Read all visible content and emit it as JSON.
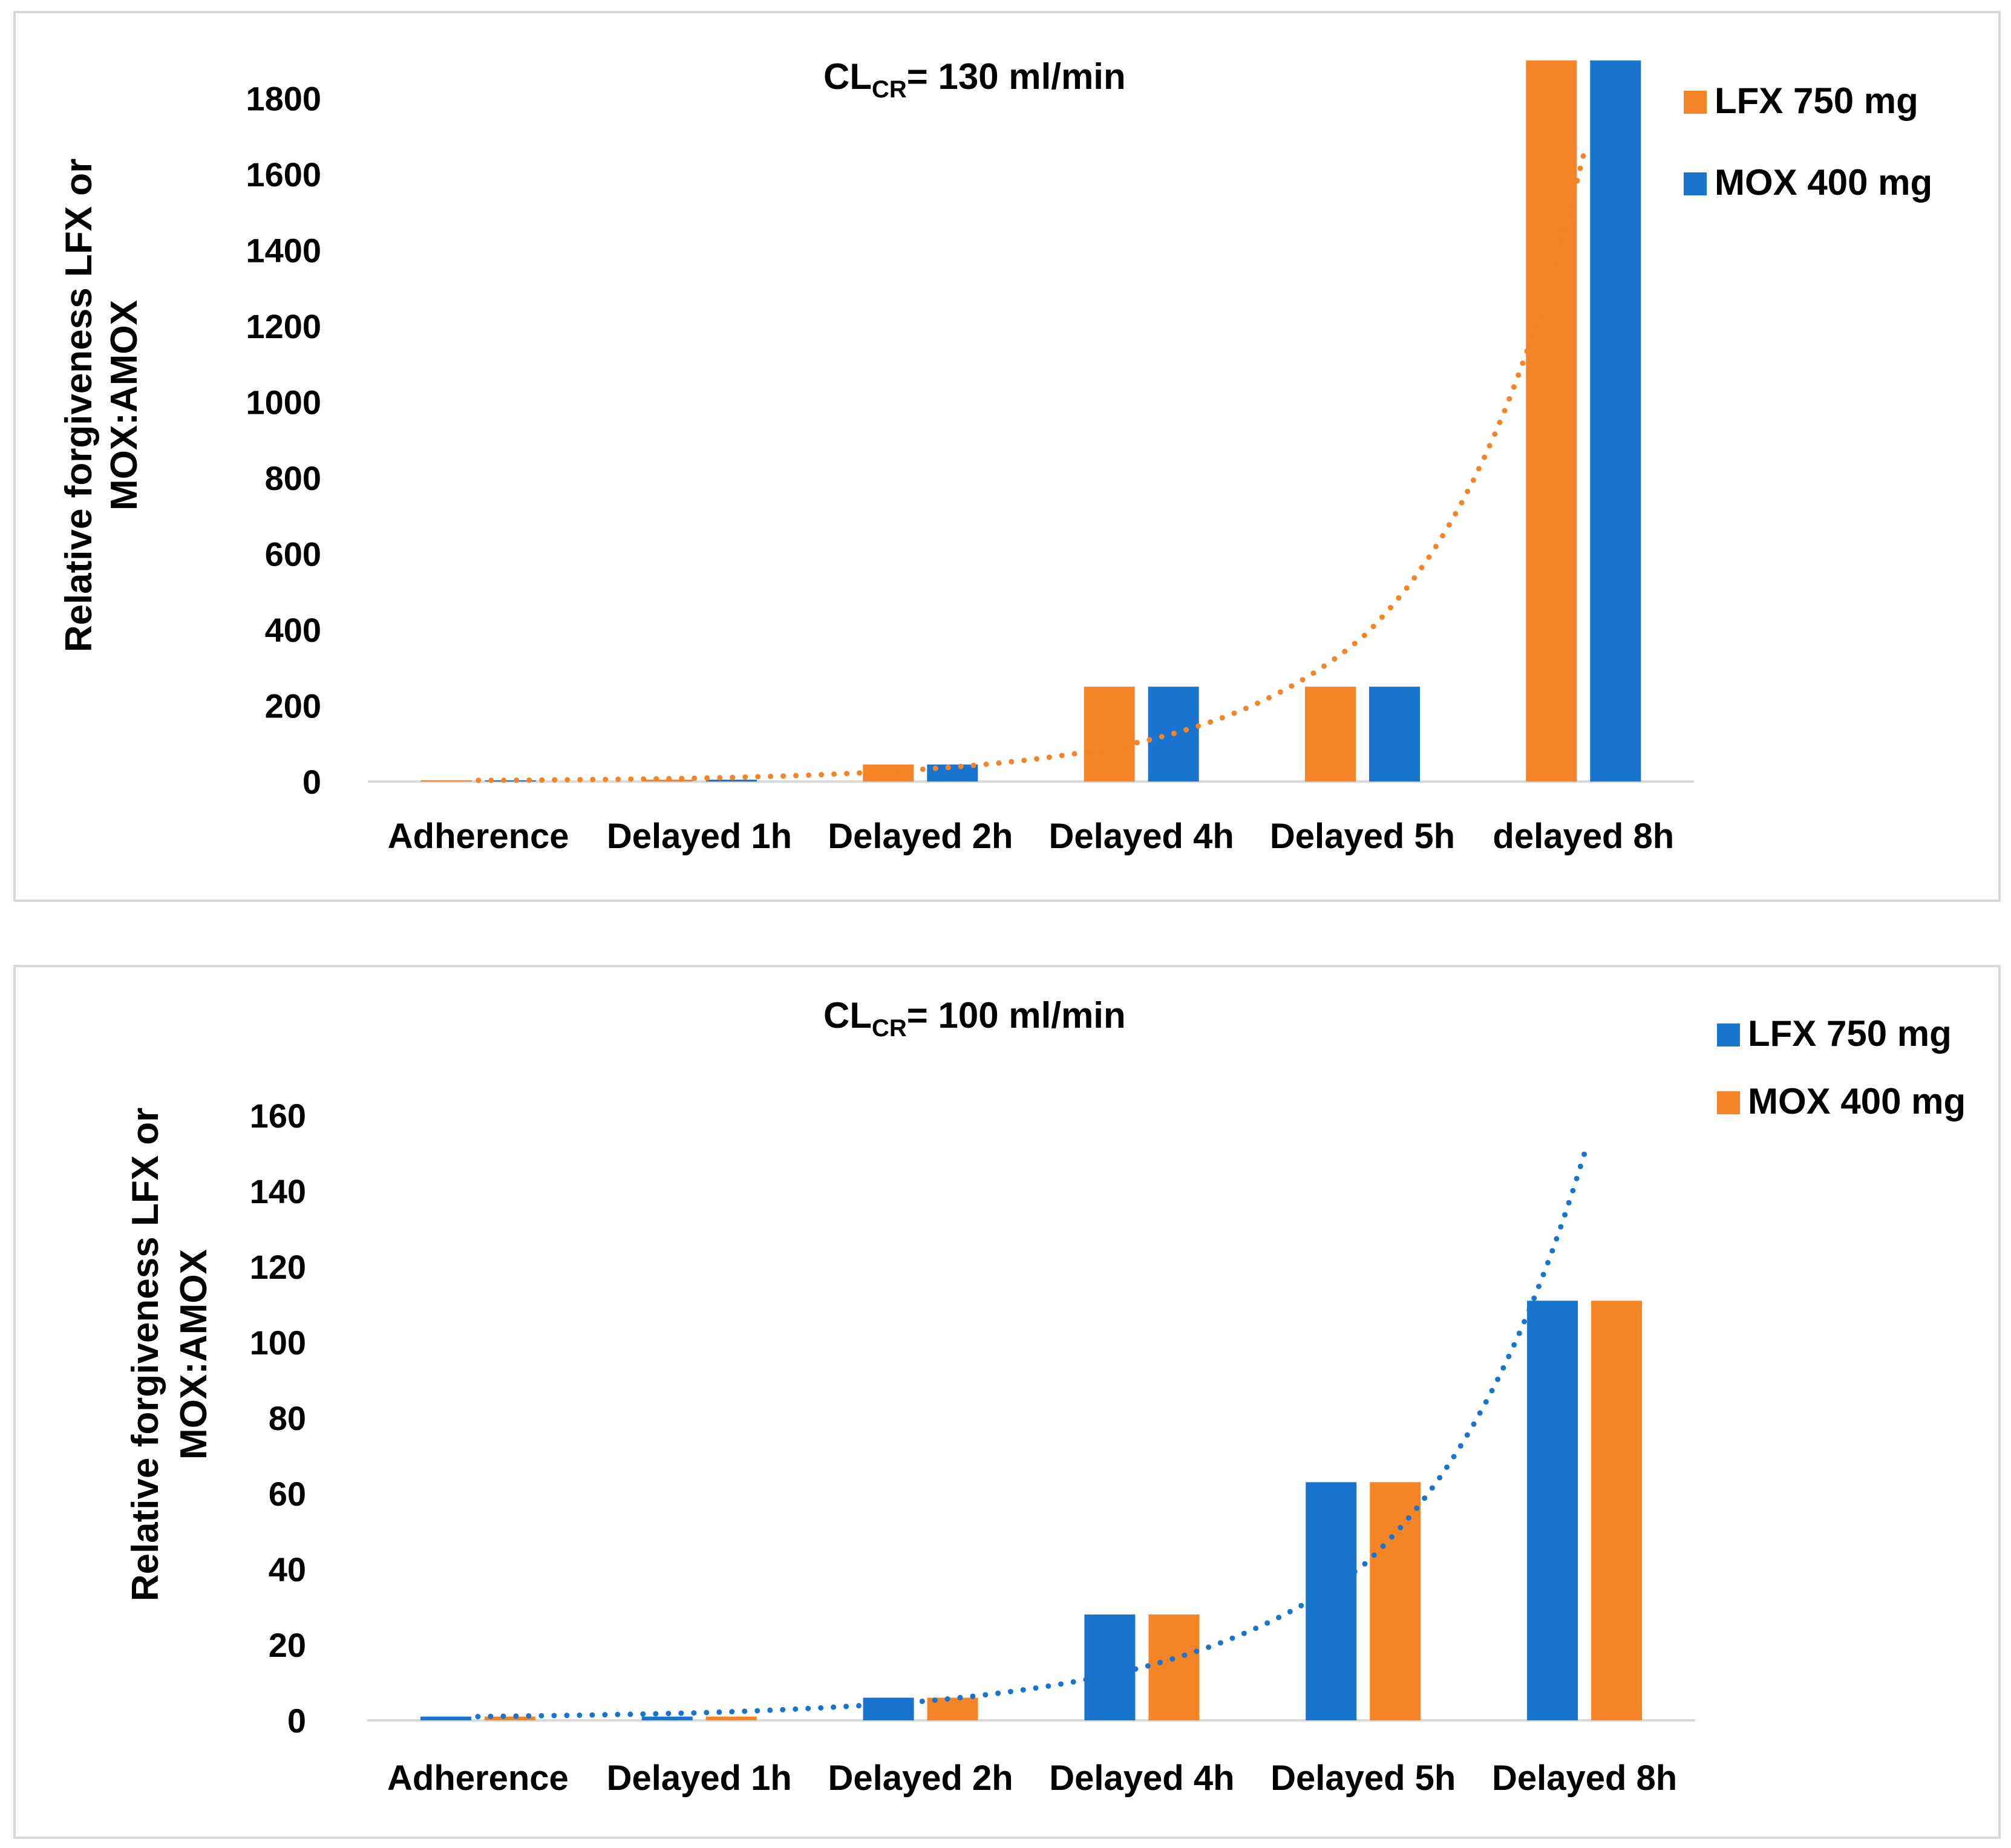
{
  "chart_data": [
    {
      "type": "bar",
      "title": "CL",
      "title_sub": "CR",
      "title_rest": "= 130 ml/min",
      "ylabel": "Relative forgiveness  LFX or MOX:AMOX",
      "ylabel_lines": [
        "Relative forgiveness  LFX or",
        "MOX:AMOX"
      ],
      "categories": [
        "Adherence",
        "Delayed 1h",
        "Delayed 2h",
        "Delayed 4h",
        "Delayed 5h",
        "delayed 8h"
      ],
      "series": [
        {
          "name": "LFX 750 mg",
          "color": "#F58426",
          "values": [
            1,
            5,
            45,
            250,
            250,
            1900
          ]
        },
        {
          "name": "MOX 400 mg",
          "color": "#1874CD",
          "values": [
            1,
            5,
            45,
            250,
            250,
            1900
          ]
        }
      ],
      "yticks": [
        0,
        200,
        400,
        600,
        800,
        1000,
        1200,
        1400,
        1600,
        1800
      ],
      "ylim": [
        0,
        1900
      ],
      "trendline": {
        "series": "LFX 750 mg",
        "type": "exponential",
        "style": "dotted",
        "color": "#F58426",
        "values": [
          3,
          9,
          32,
          105,
          380,
          1650
        ]
      },
      "legend": "right"
    },
    {
      "type": "bar",
      "title": "CL",
      "title_sub": "CR",
      "title_rest": "= 100 ml/min",
      "ylabel": "Relative forgiveness LFX or MOX:AMOX",
      "ylabel_lines": [
        "Relative forgiveness LFX or",
        "MOX:AMOX"
      ],
      "categories": [
        "Adherence",
        "Delayed 1h",
        "Delayed 2h",
        "Delayed 4h",
        "Delayed 5h",
        "Delayed 8h"
      ],
      "series": [
        {
          "name": "LFX 750 mg",
          "color": "#1874CD",
          "values": [
            1,
            1,
            6,
            28,
            63,
            111
          ]
        },
        {
          "name": "MOX 400 mg",
          "color": "#F58426",
          "values": [
            1,
            1,
            6,
            28,
            63,
            111
          ]
        }
      ],
      "yticks": [
        0,
        20,
        40,
        60,
        80,
        100,
        120,
        140,
        160
      ],
      "ylim": [
        0,
        160
      ],
      "trendline": {
        "series": "LFX 750 mg",
        "type": "exponential",
        "style": "dotted",
        "color": "#1874CD",
        "values": [
          1,
          2,
          5,
          14,
          41,
          150
        ]
      },
      "legend": "right"
    }
  ]
}
